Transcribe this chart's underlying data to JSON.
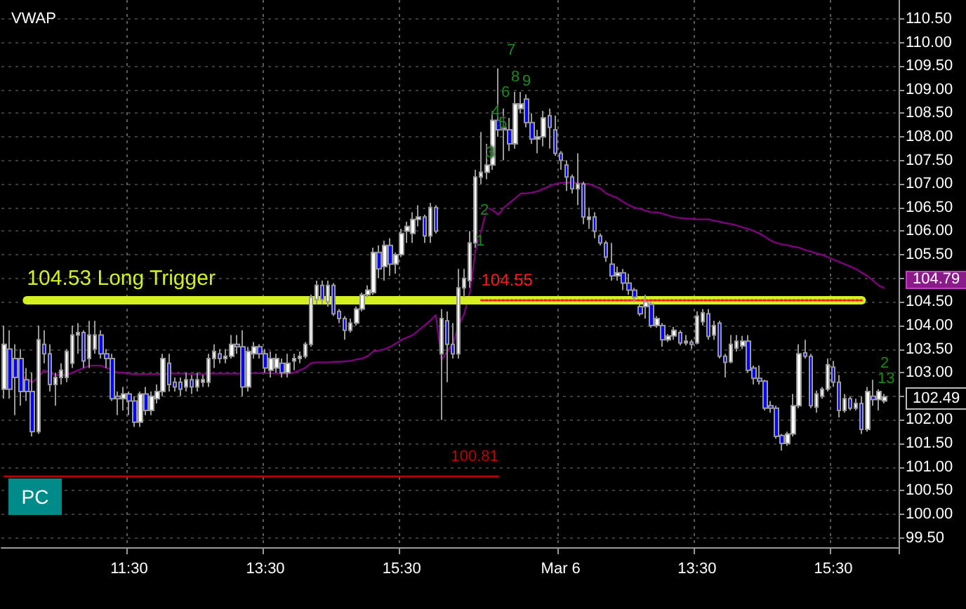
{
  "chart_data": {
    "type": "candlestick",
    "title": "VWAP",
    "categories": [
      null,
      null,
      null,
      null,
      null,
      null,
      null,
      null,
      null,
      null,
      null,
      null,
      null,
      null,
      null,
      null,
      null,
      null,
      null,
      null,
      null,
      null,
      "11:30",
      null,
      null,
      null,
      null,
      null,
      null,
      null,
      null,
      null,
      null,
      null,
      null,
      null,
      null,
      null,
      null,
      null,
      null,
      null,
      null,
      null,
      null,
      null,
      "13:30",
      null,
      null,
      null,
      null,
      null,
      null,
      null,
      null,
      null,
      null,
      null,
      null,
      null,
      null,
      null,
      null,
      null,
      null,
      null,
      null,
      null,
      null,
      null,
      "15:30",
      null,
      null,
      null,
      null,
      null,
      null,
      null,
      null,
      null,
      null,
      null,
      null,
      null,
      null,
      null,
      null,
      null,
      null,
      null,
      null,
      null,
      null,
      null,
      null,
      null,
      null,
      null,
      "Mar 6",
      null,
      null,
      null,
      null,
      null,
      null,
      null,
      null,
      null,
      null,
      null,
      null,
      null,
      null,
      null,
      null,
      null,
      null,
      null,
      null,
      null,
      null,
      null,
      "13:30",
      null,
      null,
      null,
      null,
      null,
      null,
      null,
      null,
      null,
      null,
      null,
      null,
      null,
      null,
      null,
      null,
      null,
      null,
      null,
      null,
      null,
      null,
      null,
      "15:30",
      null,
      null,
      null,
      null,
      null,
      null,
      null,
      null,
      null
    ],
    "ohlc": [
      [
        102.65,
        104.0,
        102.45,
        103.6
      ],
      [
        103.5,
        103.9,
        102.45,
        102.65
      ],
      [
        103.3,
        103.6,
        102.1,
        102.9
      ],
      [
        103.3,
        103.5,
        102.3,
        102.6
      ],
      [
        102.85,
        103.1,
        102.4,
        102.6
      ],
      [
        102.6,
        103.0,
        101.65,
        101.75
      ],
      [
        101.75,
        104.0,
        101.7,
        103.7
      ],
      [
        103.6,
        103.9,
        103.2,
        103.4
      ],
      [
        103.4,
        103.6,
        102.6,
        102.75
      ],
      [
        102.75,
        103.0,
        102.3,
        102.9
      ],
      [
        102.9,
        103.2,
        102.75,
        103.05
      ],
      [
        102.9,
        103.5,
        102.8,
        103.45
      ],
      [
        103.2,
        104.0,
        103.1,
        103.8
      ],
      [
        103.8,
        104.05,
        103.4,
        103.85
      ],
      [
        103.85,
        103.9,
        103.1,
        103.25
      ],
      [
        103.3,
        104.1,
        103.1,
        103.8
      ],
      [
        103.5,
        104.1,
        103.4,
        103.8
      ],
      [
        103.8,
        103.9,
        103.3,
        103.4
      ],
      [
        103.4,
        103.5,
        103.1,
        103.3
      ],
      [
        103.3,
        103.4,
        102.4,
        102.45
      ],
      [
        102.5,
        102.6,
        102.1,
        102.45
      ],
      [
        102.45,
        102.7,
        102.2,
        102.55
      ],
      [
        102.55,
        102.6,
        102.1,
        102.4
      ],
      [
        102.4,
        102.5,
        101.85,
        101.95
      ],
      [
        101.95,
        102.6,
        101.85,
        102.55
      ],
      [
        102.55,
        102.7,
        102.1,
        102.2
      ],
      [
        102.2,
        102.6,
        102.1,
        102.5
      ],
      [
        102.45,
        102.75,
        102.35,
        102.6
      ],
      [
        102.6,
        103.4,
        102.5,
        103.3
      ],
      [
        103.2,
        103.4,
        102.6,
        102.75
      ],
      [
        102.8,
        102.9,
        102.6,
        102.7
      ],
      [
        102.8,
        102.9,
        102.5,
        102.65
      ],
      [
        102.7,
        103.0,
        102.6,
        102.85
      ],
      [
        102.85,
        102.95,
        102.55,
        102.7
      ],
      [
        102.7,
        103.0,
        102.6,
        102.85
      ],
      [
        102.8,
        102.95,
        102.7,
        102.85
      ],
      [
        102.8,
        103.4,
        102.7,
        103.3
      ],
      [
        103.3,
        103.6,
        103.1,
        103.45
      ],
      [
        103.4,
        103.5,
        103.2,
        103.3
      ],
      [
        103.3,
        103.5,
        103.2,
        103.35
      ],
      [
        103.35,
        103.8,
        103.3,
        103.6
      ],
      [
        103.6,
        103.8,
        103.4,
        103.55
      ],
      [
        103.55,
        103.9,
        102.5,
        102.7
      ],
      [
        102.7,
        103.55,
        102.6,
        103.45
      ],
      [
        103.4,
        103.65,
        103.3,
        103.55
      ],
      [
        103.55,
        103.6,
        103.3,
        103.4
      ],
      [
        103.4,
        103.5,
        103.0,
        103.1
      ],
      [
        103.05,
        103.45,
        102.9,
        103.3
      ],
      [
        103.1,
        103.4,
        103.0,
        103.3
      ],
      [
        103.2,
        103.3,
        102.9,
        103.0
      ],
      [
        103.0,
        103.4,
        102.9,
        103.2
      ],
      [
        103.25,
        103.4,
        103.05,
        103.3
      ],
      [
        103.3,
        103.45,
        103.2,
        103.35
      ],
      [
        103.35,
        103.65,
        103.3,
        103.6
      ],
      [
        103.6,
        104.65,
        103.55,
        104.6
      ],
      [
        104.55,
        104.95,
        104.45,
        104.85
      ],
      [
        104.85,
        104.95,
        104.45,
        104.55
      ],
      [
        104.5,
        104.95,
        104.4,
        104.85
      ],
      [
        104.85,
        104.9,
        104.2,
        104.25
      ],
      [
        104.3,
        104.35,
        104.05,
        104.15
      ],
      [
        104.15,
        104.2,
        103.7,
        103.9
      ],
      [
        103.9,
        104.15,
        103.85,
        104.05
      ],
      [
        104.05,
        104.4,
        104.0,
        104.35
      ],
      [
        104.35,
        104.7,
        104.3,
        104.65
      ],
      [
        104.65,
        104.85,
        104.6,
        104.75
      ],
      [
        104.7,
        105.65,
        104.65,
        105.55
      ],
      [
        105.55,
        105.7,
        105.0,
        105.2
      ],
      [
        105.25,
        105.8,
        104.95,
        105.7
      ],
      [
        105.7,
        105.85,
        105.05,
        105.3
      ],
      [
        105.3,
        105.55,
        105.1,
        105.5
      ],
      [
        105.5,
        106.05,
        105.45,
        105.95
      ],
      [
        106.0,
        106.2,
        105.75,
        106.1
      ],
      [
        105.95,
        106.4,
        105.75,
        106.25
      ],
      [
        106.25,
        106.55,
        106.1,
        106.3
      ],
      [
        106.3,
        106.35,
        105.75,
        105.9
      ],
      [
        105.9,
        106.6,
        105.75,
        106.5
      ],
      [
        106.5,
        106.55,
        105.95,
        106.0
      ],
      [
        103.4,
        104.35,
        102.0,
        104.15
      ],
      [
        104.1,
        104.3,
        102.8,
        103.6
      ],
      [
        103.6,
        104.05,
        103.3,
        103.4
      ],
      [
        103.4,
        105.2,
        103.3,
        104.8
      ],
      [
        104.8,
        105.2,
        104.6,
        105.0
      ],
      [
        104.95,
        106.0,
        104.8,
        105.75
      ],
      [
        105.75,
        107.3,
        105.65,
        107.15
      ],
      [
        107.15,
        108.1,
        107.0,
        107.25
      ],
      [
        107.25,
        107.85,
        107.1,
        107.4
      ],
      [
        107.4,
        108.55,
        107.3,
        108.35
      ],
      [
        108.35,
        109.45,
        108.0,
        108.15
      ],
      [
        108.15,
        108.6,
        107.5,
        108.2
      ],
      [
        108.15,
        108.4,
        107.7,
        107.85
      ],
      [
        107.85,
        108.95,
        107.75,
        108.7
      ],
      [
        108.6,
        108.95,
        108.5,
        108.7
      ],
      [
        108.8,
        108.9,
        108.2,
        108.3
      ],
      [
        108.3,
        108.5,
        107.85,
        107.95
      ],
      [
        107.95,
        108.15,
        107.65,
        108.0
      ],
      [
        108.0,
        108.55,
        107.8,
        108.4
      ],
      [
        108.45,
        108.6,
        107.75,
        108.2
      ],
      [
        108.15,
        108.45,
        107.6,
        107.65
      ],
      [
        107.65,
        107.7,
        107.3,
        107.5
      ],
      [
        107.4,
        107.5,
        106.85,
        107.15
      ],
      [
        107.15,
        107.2,
        106.8,
        106.9
      ],
      [
        106.9,
        107.65,
        106.55,
        107.0
      ],
      [
        107.0,
        107.05,
        106.15,
        106.3
      ],
      [
        106.25,
        106.5,
        106.05,
        106.3
      ],
      [
        106.3,
        106.4,
        105.85,
        106.0
      ],
      [
        105.9,
        105.95,
        105.7,
        105.75
      ],
      [
        105.75,
        105.8,
        105.35,
        105.45
      ],
      [
        105.3,
        105.75,
        104.95,
        105.05
      ],
      [
        105.05,
        105.25,
        104.95,
        105.12
      ],
      [
        105.12,
        105.2,
        104.75,
        104.9
      ],
      [
        104.9,
        105.1,
        104.65,
        104.75
      ],
      [
        104.75,
        104.8,
        104.5,
        104.6
      ],
      [
        104.4,
        104.45,
        104.2,
        104.25
      ],
      [
        104.4,
        104.65,
        104.15,
        104.5
      ],
      [
        104.45,
        104.5,
        103.95,
        104.0
      ],
      [
        104.0,
        104.2,
        103.95,
        104.15
      ],
      [
        104.0,
        104.05,
        103.55,
        103.7
      ],
      [
        103.7,
        103.82,
        103.65,
        103.78
      ],
      [
        103.78,
        103.97,
        103.7,
        103.9
      ],
      [
        103.85,
        103.9,
        103.58,
        103.63
      ],
      [
        103.63,
        103.8,
        103.58,
        103.67
      ],
      [
        103.65,
        103.7,
        103.5,
        103.6
      ],
      [
        103.63,
        104.3,
        103.6,
        104.2
      ],
      [
        104.08,
        104.35,
        104.0,
        104.27
      ],
      [
        104.25,
        104.35,
        103.7,
        103.77
      ],
      [
        103.8,
        104.1,
        103.7,
        104.0
      ],
      [
        104.05,
        104.1,
        103.3,
        103.35
      ],
      [
        103.35,
        103.4,
        102.9,
        103.22
      ],
      [
        103.23,
        103.8,
        103.2,
        103.6
      ],
      [
        103.52,
        103.8,
        103.45,
        103.67
      ],
      [
        103.57,
        103.78,
        103.5,
        103.67
      ],
      [
        103.67,
        103.8,
        103.0,
        103.05
      ],
      [
        103.1,
        103.15,
        102.75,
        102.88
      ],
      [
        102.88,
        103.15,
        102.75,
        102.82
      ],
      [
        102.82,
        102.85,
        102.2,
        102.25
      ],
      [
        102.3,
        102.4,
        102.15,
        102.25
      ],
      [
        102.25,
        102.3,
        101.6,
        101.65
      ],
      [
        101.67,
        101.7,
        101.35,
        101.5
      ],
      [
        101.5,
        101.75,
        101.45,
        101.7
      ],
      [
        101.7,
        102.55,
        101.65,
        102.3
      ],
      [
        102.3,
        103.6,
        102.25,
        103.4
      ],
      [
        103.42,
        103.7,
        103.3,
        103.35
      ],
      [
        103.35,
        103.4,
        102.25,
        102.3
      ],
      [
        102.27,
        102.62,
        102.15,
        102.55
      ],
      [
        102.5,
        102.7,
        102.45,
        102.65
      ],
      [
        102.65,
        103.3,
        102.6,
        103.17
      ],
      [
        103.12,
        103.25,
        102.7,
        102.8
      ],
      [
        102.8,
        102.95,
        102.05,
        102.2
      ],
      [
        102.2,
        102.55,
        102.15,
        102.45
      ],
      [
        102.45,
        102.5,
        102.2,
        102.25
      ],
      [
        102.25,
        102.45,
        102.2,
        102.35
      ],
      [
        102.35,
        102.5,
        101.7,
        101.8
      ],
      [
        101.8,
        102.7,
        101.75,
        102.6
      ],
      [
        102.5,
        102.85,
        102.3,
        102.43
      ],
      [
        102.43,
        102.65,
        102.2,
        102.6
      ],
      [
        102.4,
        102.55,
        102.35,
        102.49
      ]
    ],
    "series": [
      {
        "type": "line",
        "color": "#800080",
        "values": [
          null,
          null,
          null,
          102.95,
          102.85,
          102.8,
          102.9,
          103.05,
          103.0,
          102.95,
          102.95,
          102.95,
          103.0,
          103.05,
          103.1,
          103.15,
          103.15,
          103.15,
          103.1,
          103.05,
          103.0,
          103.0,
          102.98,
          102.97,
          102.97,
          102.97,
          102.97,
          102.97,
          102.97,
          102.98,
          102.98,
          102.98,
          102.98,
          102.97,
          102.97,
          102.97,
          102.98,
          102.98,
          102.98,
          102.98,
          102.98,
          102.98,
          102.98,
          102.99,
          102.99,
          102.99,
          102.99,
          102.99,
          102.98,
          102.98,
          102.98,
          103.0,
          103.05,
          103.1,
          103.2,
          103.22,
          103.22,
          103.22,
          103.23,
          103.23,
          103.24,
          103.25,
          103.28,
          103.3,
          103.35,
          103.45,
          103.47,
          103.5,
          103.55,
          103.62,
          103.7,
          103.75,
          103.8,
          103.9,
          104.0,
          104.1,
          104.22,
          103.27,
          103.45,
          103.6,
          104.0,
          104.25,
          104.7,
          105.6,
          106.0,
          106.5,
          106.45,
          106.35,
          106.5,
          106.6,
          106.7,
          106.8,
          106.8,
          106.82,
          106.85,
          106.9,
          106.95,
          107.0,
          107.02,
          107.03,
          107.03,
          107.02,
          107.0,
          107.0,
          106.95,
          106.9,
          106.8,
          106.75,
          106.7,
          106.62,
          106.55,
          106.5,
          106.47,
          106.43,
          106.4,
          106.4,
          106.37,
          106.33,
          106.3,
          106.28,
          106.27,
          106.26,
          106.25,
          106.25,
          106.25,
          106.22,
          106.2,
          106.17,
          106.15,
          106.12,
          106.08,
          106.05,
          106.0,
          105.95,
          105.88,
          105.8,
          105.75,
          105.72,
          105.7,
          105.67,
          105.65,
          105.6,
          105.57,
          105.53,
          105.5,
          105.45,
          105.4,
          105.35,
          105.3,
          105.25,
          105.2,
          105.12,
          105.05,
          104.95,
          104.85,
          104.79
        ]
      }
    ],
    "ylim": [
      99.3,
      110.9
    ],
    "yticks": [
      {
        "value": 99.5,
        "label": "99.50"
      },
      {
        "value": 100,
        "label": "100.00"
      },
      {
        "value": 100.5,
        "label": "100.50"
      },
      {
        "value": 101,
        "label": "101.00"
      },
      {
        "value": 101.5,
        "label": "101.50"
      },
      {
        "value": 102,
        "label": "102.00"
      },
      {
        "value": 102.5,
        "label": null
      },
      {
        "value": 103,
        "label": "103.00"
      },
      {
        "value": 103.5,
        "label": "103.50"
      },
      {
        "value": 104,
        "label": "104.00"
      },
      {
        "value": 104.5,
        "label": "104.50"
      },
      {
        "value": 105,
        "label": null
      },
      {
        "value": 105.5,
        "label": "105.50"
      },
      {
        "value": 106,
        "label": "106.00"
      },
      {
        "value": 106.5,
        "label": "106.50"
      },
      {
        "value": 107,
        "label": "107.00"
      },
      {
        "value": 107.5,
        "label": "107.50"
      },
      {
        "value": 108,
        "label": "108.00"
      },
      {
        "value": 108.5,
        "label": "108.50"
      },
      {
        "value": 109,
        "label": "109.00"
      },
      {
        "value": 109.5,
        "label": "109.50"
      },
      {
        "value": 110,
        "label": "110.00"
      },
      {
        "value": 110.5,
        "label": "110.50"
      }
    ],
    "ref_lines": [
      {
        "axis": "y",
        "value": 104.53,
        "label": "104.53 Long Trigger",
        "color": "#d4f01e"
      },
      {
        "axis": "y",
        "value": 100.81,
        "label": "100.81",
        "color": "#c00000"
      },
      {
        "axis": "y",
        "value": 104.55,
        "label": "104.55",
        "color": "#ff1a1a",
        "line_style": "dotted"
      }
    ],
    "annotations": [
      "1",
      "2",
      "3",
      "4",
      "5",
      "6",
      "7",
      "8",
      "9",
      "2",
      "13",
      "104.79",
      "102.49",
      "PC"
    ],
    "grid": true,
    "marker": "none",
    "line_style": "solid"
  }
}
